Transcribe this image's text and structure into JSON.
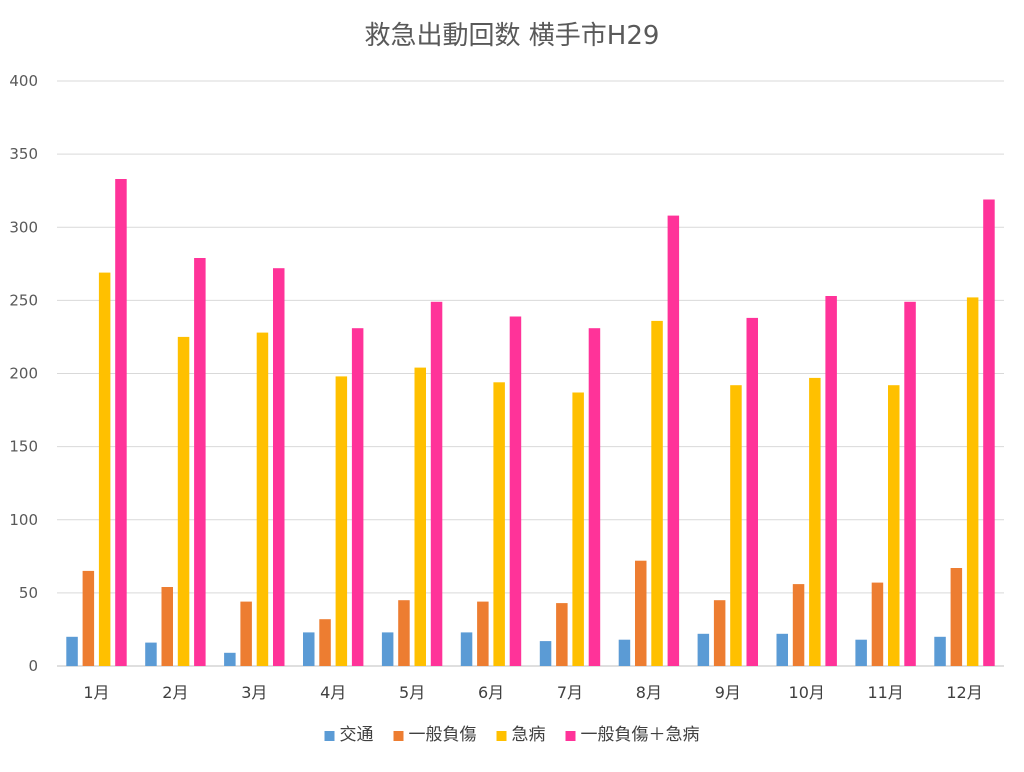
{
  "chart_data": {
    "type": "bar",
    "title": "救急出動回数 横手市H29",
    "xlabel": "",
    "ylabel": "",
    "ylim": [
      0,
      400
    ],
    "yticks": [
      0,
      50,
      100,
      150,
      200,
      250,
      300,
      350,
      400
    ],
    "grid": true,
    "legend_position": "bottom",
    "categories": [
      "1月",
      "2月",
      "3月",
      "4月",
      "5月",
      "6月",
      "7月",
      "8月",
      "9月",
      "10月",
      "11月",
      "12月"
    ],
    "series": [
      {
        "name": "交通",
        "color": "#5b9bd5",
        "values": [
          20,
          16,
          9,
          23,
          23,
          23,
          17,
          18,
          22,
          22,
          18,
          20
        ]
      },
      {
        "name": "一般負傷",
        "color": "#ed7d31",
        "values": [
          65,
          54,
          44,
          32,
          45,
          44,
          43,
          72,
          45,
          56,
          57,
          67
        ]
      },
      {
        "name": "急病",
        "color": "#ffc000",
        "values": [
          269,
          225,
          228,
          198,
          204,
          194,
          187,
          236,
          192,
          197,
          192,
          252
        ]
      },
      {
        "name": "一般負傷＋急病",
        "color": "#ff3399",
        "values": [
          333,
          279,
          272,
          231,
          249,
          239,
          231,
          308,
          238,
          253,
          249,
          319
        ]
      }
    ]
  }
}
